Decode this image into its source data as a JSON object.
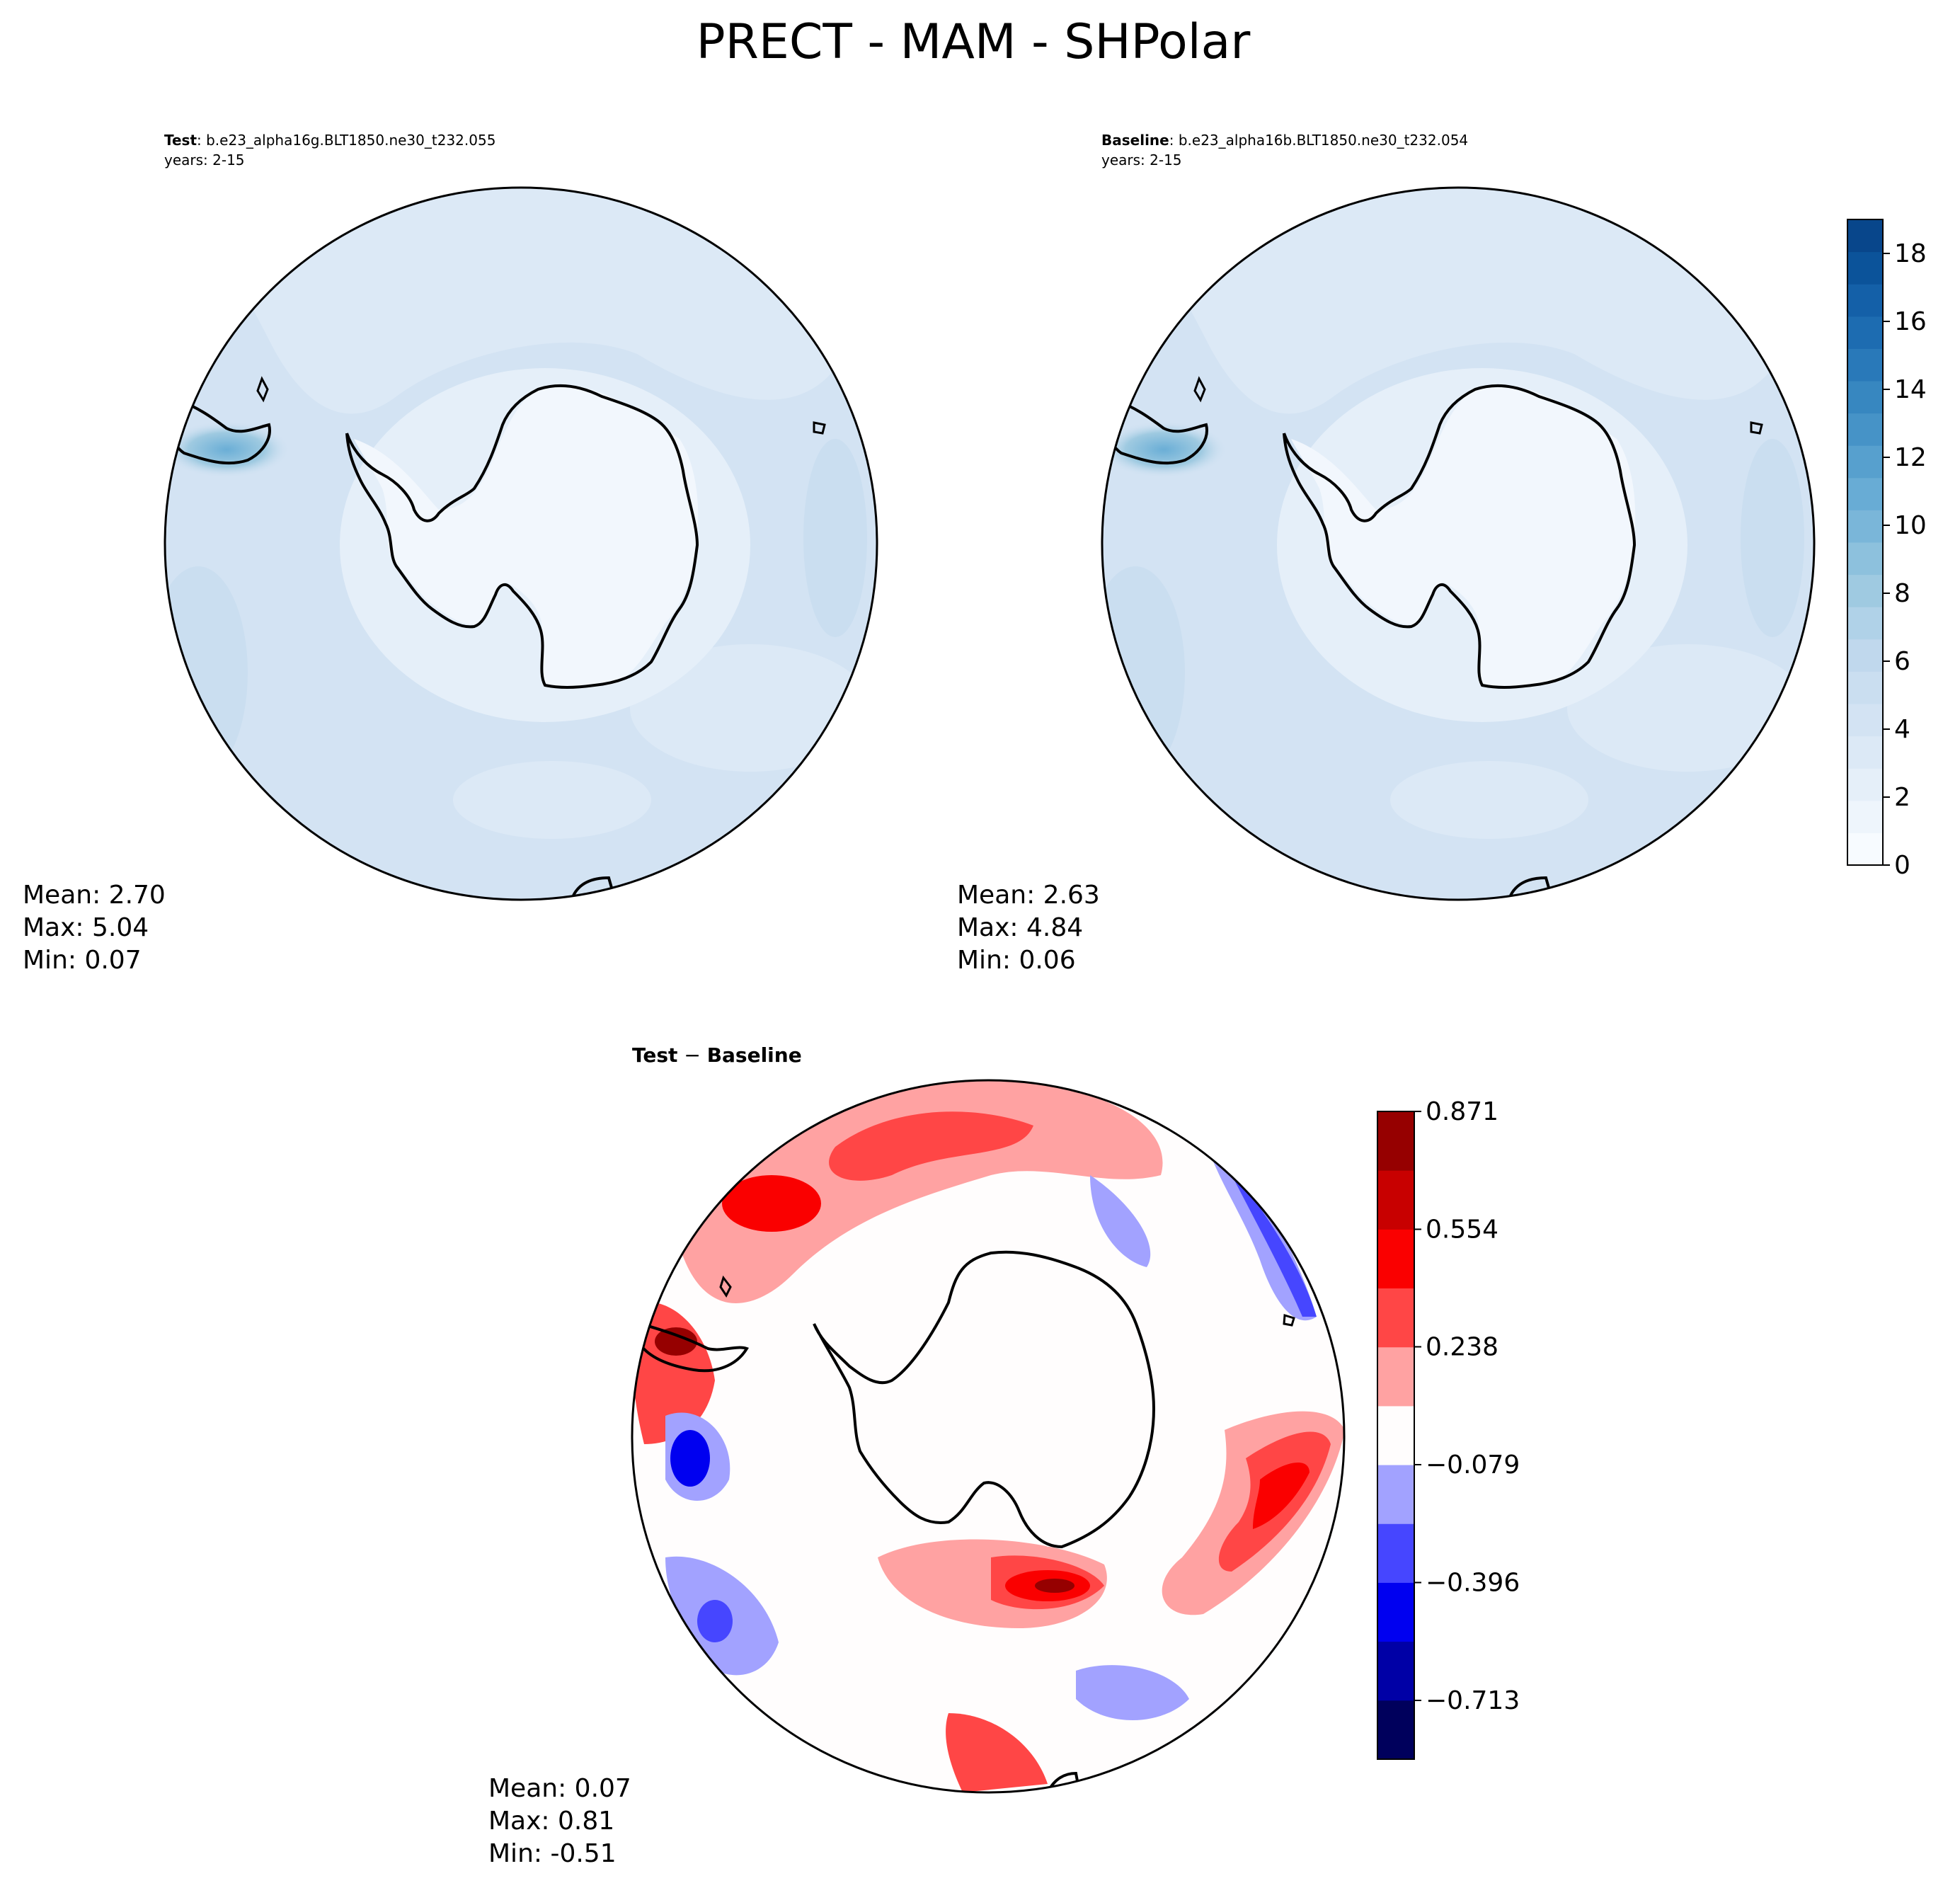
{
  "title": "PRECT - MAM - SHPolar",
  "colors": {
    "land": "#f2f7fd",
    "ocean_low": "#e2edf8",
    "ocean_mid": "#d3e3f3",
    "ocean_high": "#c4daee",
    "storm": "#6aaed6",
    "coast": "#000000"
  },
  "chart_data": [
    {
      "type": "heatmap",
      "panel": "test",
      "label_bold": "Test",
      "label_rest": ": b.e23_alpha16g.BLT1850.ne30_t232.055",
      "years": "years: 2-15",
      "stats": {
        "mean": "Mean:  2.70",
        "max": "Max:  5.04",
        "min": "Min:  0.07"
      },
      "mean": 2.7,
      "max": 5.04,
      "min": 0.07
    },
    {
      "type": "heatmap",
      "panel": "baseline",
      "label_bold": "Baseline",
      "label_rest": ": b.e23_alpha16b.BLT1850.ne30_t232.054",
      "years": "years: 2-15",
      "stats": {
        "mean": "Mean:  2.63",
        "max": "Max:  4.84",
        "min": "Min:  0.06"
      },
      "mean": 2.63,
      "max": 4.84,
      "min": 0.06,
      "colorbar": {
        "range": [
          0,
          19
        ],
        "ticks": [
          0,
          2,
          4,
          6,
          8,
          10,
          12,
          14,
          16,
          18
        ],
        "tick_labels": [
          "0",
          "2",
          "4",
          "6",
          "8",
          "10",
          "12",
          "14",
          "16",
          "18"
        ],
        "colors": [
          "#f7fbff",
          "#eef5fc",
          "#e5eff9",
          "#dce9f6",
          "#d3e3f3",
          "#cadef0",
          "#c0d8ed",
          "#b0d2e8",
          "#9fcae1",
          "#8dc1dd",
          "#7ab6d9",
          "#68acd5",
          "#57a0ce",
          "#4693c7",
          "#3787c0",
          "#2979b9",
          "#1d6cb1",
          "#1460a8",
          "#0b539a",
          "#08468b"
        ]
      }
    },
    {
      "type": "heatmap",
      "panel": "difference",
      "title_bold": "Test",
      "title_sep": " − ",
      "title_bold2": "Baseline",
      "stats": {
        "mean": "Mean:  0.07",
        "max": "Max:  0.81",
        "min": "Min: -0.51"
      },
      "mean": 0.07,
      "max": 0.81,
      "min": -0.51,
      "colorbar": {
        "range": [
          -0.871,
          0.871
        ],
        "ticks": [
          -0.713,
          -0.396,
          -0.079,
          0.238,
          0.554,
          0.871
        ],
        "tick_labels": [
          "−0.713",
          "−0.396",
          "−0.079",
          "0.238",
          "0.554",
          "0.871"
        ],
        "colors": [
          "#00005c",
          "#0000a6",
          "#0000f0",
          "#4646ff",
          "#a2a2ff",
          "#fffdfd",
          "#ffa2a2",
          "#ff4646",
          "#fa0000",
          "#c80000",
          "#960000"
        ]
      }
    }
  ]
}
